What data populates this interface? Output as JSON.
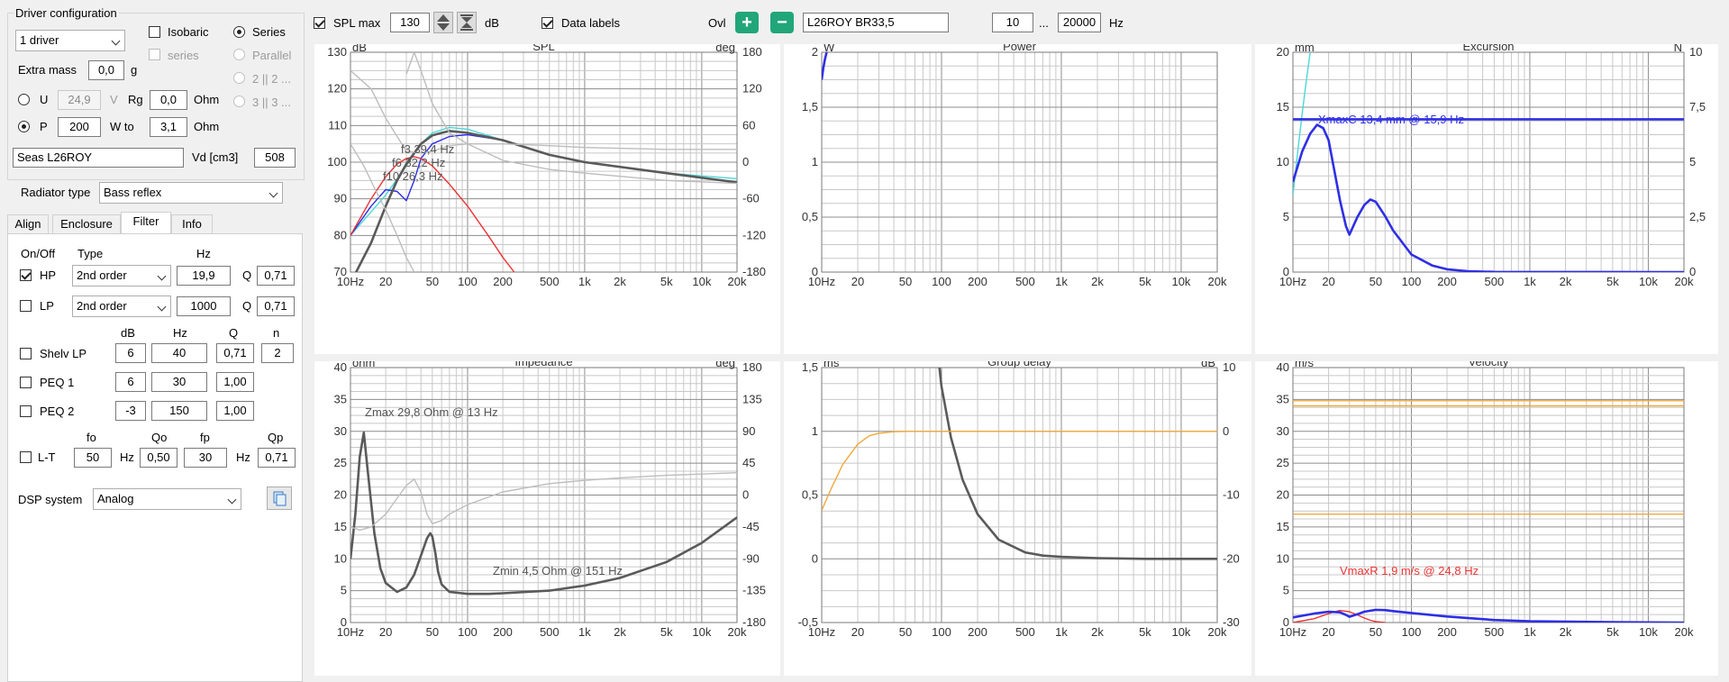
{
  "left": {
    "driver_group": "Driver configuration",
    "driver_count": "1 driver",
    "isobaric": "Isobaric",
    "series_cb": "series",
    "series_rb": "Series",
    "parallel_rb": "Parallel",
    "p2_rb": "2 || 2 ...",
    "p3_rb": "3 || 3 ...",
    "extra_mass_label": "Extra mass",
    "extra_mass_value": "0,0",
    "extra_mass_unit": "g",
    "u_label": "U",
    "u_value": "24,9",
    "u_unit": "V",
    "rg_label": "Rg",
    "rg_value": "0,0",
    "rg_unit": "Ohm",
    "p_label": "P",
    "p_value": "200",
    "wto_label": "W to",
    "wto_value": "3,1",
    "wto_unit": "Ohm",
    "driver_name": "Seas L26ROY",
    "vd_label": "Vd [cm3]",
    "vd_value": "508",
    "radiator_label": "Radiator type",
    "radiator_value": "Bass reflex",
    "tabs": [
      "Align",
      "Enclosure",
      "Filter",
      "Info"
    ],
    "filter": {
      "col_onoff": "On/Off",
      "col_type": "Type",
      "col_hz": "Hz",
      "hp_label": "HP",
      "hp_type": "2nd order",
      "hp_hz": "19,9",
      "hp_q_label": "Q",
      "hp_q": "0,71",
      "lp_label": "LP",
      "lp_type": "2nd order",
      "lp_hz": "1000",
      "lp_q_label": "Q",
      "lp_q": "0,71",
      "h_db": "dB",
      "h_hz": "Hz",
      "h_q": "Q",
      "h_n": "n",
      "shelv_label": "Shelv LP",
      "shelv_db": "6",
      "shelv_hz": "40",
      "shelv_q": "0,71",
      "shelv_n": "2",
      "peq1_label": "PEQ 1",
      "peq1_db": "6",
      "peq1_hz": "30",
      "peq1_q": "1,00",
      "peq2_label": "PEQ 2",
      "peq2_db": "-3",
      "peq2_hz": "150",
      "peq2_q": "1,00",
      "h_fo": "fo",
      "h_qo": "Qo",
      "h_fp": "fp",
      "h_qp": "Qp",
      "lt_label": "L-T",
      "lt_fo": "50",
      "lt_hz1": "Hz",
      "lt_qo": "0,50",
      "lt_fp": "30",
      "lt_hz2": "Hz",
      "lt_qp": "0,71",
      "dsp_label": "DSP system",
      "dsp_value": "Analog"
    }
  },
  "toolbar": {
    "splmax_label": "SPL max",
    "splmax_value": "130",
    "splmax_unit": "dB",
    "datalabels_label": "Data labels",
    "ovl_label": "Ovl",
    "plus": "+",
    "minus": "−",
    "overlay_name": "L26ROY BR33,5",
    "f_from": "10",
    "dots": "...",
    "f_to": "20000",
    "f_unit": "Hz"
  },
  "colors": {
    "grid": "#c8c8c8",
    "grid_major": "#8c8c8c",
    "dark": "#5a5a5a",
    "light": "#bdbdbd",
    "blue": "#2e2ee6",
    "cyan": "#4ad8d8",
    "red": "#ee3333",
    "orange": "#f0a83c"
  },
  "chart_data": [
    {
      "name": "spl",
      "type": "line",
      "title": "SPL",
      "ylabel": "dB",
      "y2label": "deg",
      "ylim": [
        70,
        130
      ],
      "yticks": [
        "130",
        "120",
        "110",
        "100",
        "90",
        "80",
        "70"
      ],
      "y2ticks": [
        "180",
        "120",
        "60",
        "0",
        "-60",
        "-120",
        "-180"
      ],
      "xticks": [
        "10Hz",
        "20",
        "50",
        "100",
        "200",
        "500",
        "1k",
        "2k",
        "5k",
        "10k",
        "20k"
      ],
      "annotations": [
        "f3 39,4 Hz",
        "f6 32,2 Hz",
        "f10 26,3 Hz"
      ],
      "series": [
        {
          "color": "cyan",
          "x": [
            10,
            20,
            30,
            40,
            50,
            70,
            100,
            200,
            500,
            1000,
            5000,
            20000
          ],
          "y": [
            80,
            91,
            99,
            105,
            108,
            109.5,
            109,
            106,
            102,
            100,
            97,
            95.5
          ]
        },
        {
          "color": "blue",
          "x": [
            10,
            15,
            20,
            25,
            30,
            35,
            40,
            50,
            70,
            100,
            200,
            500,
            1000,
            5000,
            20000
          ],
          "y": [
            80,
            88,
            92.5,
            92,
            89.5,
            95,
            101,
            105,
            107,
            107.5,
            106,
            102,
            100,
            97,
            94.5
          ]
        },
        {
          "color": "red",
          "x": [
            10,
            15,
            20,
            25,
            30,
            35,
            40,
            50,
            70,
            100,
            150,
            200,
            250
          ],
          "y": [
            80,
            90,
            96,
            99.5,
            101,
            101.5,
            101,
            99,
            94,
            88,
            80,
            74,
            70
          ]
        },
        {
          "color": "dark",
          "x": [
            10,
            15,
            20,
            25,
            30,
            40,
            50,
            60,
            70,
            100,
            200,
            500,
            1000,
            5000,
            20000
          ],
          "y": [
            67,
            78,
            88,
            95,
            99.5,
            105,
            107.3,
            108,
            108.5,
            108,
            106,
            102,
            100,
            97,
            94.5
          ]
        },
        {
          "color": "light",
          "x": [
            10,
            15,
            20,
            30,
            40,
            50,
            70,
            100,
            200,
            500,
            1000,
            5000,
            20000
          ],
          "y": [
            125,
            120,
            112,
            103,
            102.5,
            103,
            104.5,
            105,
            105,
            104.5,
            104,
            103.5,
            103.5
          ]
        },
        {
          "color": "light",
          "x": [
            10,
            13,
            16,
            20,
            25,
            30,
            35
          ],
          "y": [
            105,
            99,
            93,
            87,
            80,
            74,
            70
          ]
        },
        {
          "color": "light",
          "x": [
            30,
            35,
            40,
            50,
            70,
            100,
            200,
            500,
            1000,
            5000,
            20000
          ],
          "y": [
            124,
            130,
            125,
            116,
            108,
            105,
            100.5,
            98,
            97,
            95,
            94.2
          ]
        }
      ]
    },
    {
      "name": "power",
      "type": "line",
      "title": "Power",
      "ylabel": "W",
      "ylim": [
        0,
        2
      ],
      "yticks": [
        "2",
        "1,5",
        "1",
        "0,5",
        "0"
      ],
      "xticks": [
        "10Hz",
        "20",
        "50",
        "100",
        "200",
        "500",
        "1k",
        "2k",
        "5k",
        "10k",
        "20k"
      ],
      "series": [
        {
          "color": "blue",
          "x": [
            10,
            10.3,
            10.6,
            11
          ],
          "y": [
            1.75,
            1.85,
            1.93,
            2.0
          ]
        }
      ]
    },
    {
      "name": "excursion",
      "type": "line",
      "title": "Excursion",
      "ylabel": "mm",
      "y2label": "N",
      "ylim": [
        0,
        20
      ],
      "yticks": [
        "20",
        "15",
        "10",
        "5",
        "0"
      ],
      "y2ticks": [
        "10",
        "7,5",
        "5",
        "2,5",
        "0"
      ],
      "xticks": [
        "10Hz",
        "20",
        "50",
        "100",
        "200",
        "500",
        "1k",
        "2k",
        "5k",
        "10k",
        "20k"
      ],
      "annotations": [
        "XmaxC 13,4 mm  @ 15,9 Hz"
      ],
      "series": [
        {
          "color": "cyan",
          "x": [
            10,
            11,
            12,
            13,
            14
          ],
          "y": [
            7,
            11,
            14.5,
            17.5,
            20
          ]
        },
        {
          "color": "blue",
          "x": [
            10,
            12,
            14,
            16,
            18,
            20,
            25,
            28,
            30,
            35,
            40,
            45,
            50,
            60,
            70,
            100,
            150,
            200,
            300,
            500,
            20000
          ],
          "y": [
            8.2,
            11,
            12.6,
            13.4,
            13.1,
            12,
            6.5,
            4.2,
            3.4,
            5,
            6.1,
            6.6,
            6.4,
            5.1,
            3.8,
            1.6,
            0.6,
            0.25,
            0.08,
            0.02,
            0
          ]
        },
        {
          "color": "blue",
          "x": [
            10,
            20000
          ],
          "y": [
            13.9,
            13.9
          ]
        }
      ]
    },
    {
      "name": "impedance",
      "type": "line",
      "title": "Impedance",
      "ylabel": "ohm",
      "y2label": "deg",
      "ylim": [
        0,
        40
      ],
      "yticks": [
        "40",
        "35",
        "30",
        "25",
        "20",
        "15",
        "10",
        "5",
        "0"
      ],
      "y2ticks": [
        "180",
        "135",
        "90",
        "45",
        "0",
        "-45",
        "-90",
        "-135",
        "-180"
      ],
      "xticks": [
        "10Hz",
        "20",
        "50",
        "100",
        "200",
        "500",
        "1k",
        "2k",
        "5k",
        "10k",
        "20k"
      ],
      "annotations": [
        "Zmax 29,8 Ohm @ 13 Hz",
        "Zmin 4,5 Ohm @ 151 Hz"
      ],
      "series": [
        {
          "color": "dark",
          "x": [
            10,
            11,
            12,
            13,
            14,
            16,
            18,
            20,
            25,
            30,
            35,
            40,
            45,
            48,
            50,
            53,
            56,
            60,
            70,
            100,
            151,
            200,
            500,
            1000,
            2000,
            5000,
            10000,
            20000
          ],
          "y": [
            10,
            17,
            26,
            29.8,
            24,
            14,
            8.5,
            6.2,
            4.8,
            5.5,
            7.5,
            10.5,
            13.2,
            14,
            13.5,
            11,
            8,
            6,
            4.8,
            4.5,
            4.5,
            4.6,
            5,
            5.8,
            7,
            9.5,
            12.5,
            16.5
          ]
        },
        {
          "color": "light",
          "x": [
            10,
            12,
            15,
            20,
            25,
            30,
            35,
            40,
            45,
            50,
            60,
            70,
            100,
            200,
            500,
            1000,
            2000,
            5000,
            20000
          ],
          "y": [
            15,
            14.5,
            15,
            17,
            19.5,
            21.5,
            22.5,
            20.5,
            17,
            15.5,
            16,
            17,
            18.5,
            20.5,
            21.8,
            22.3,
            22.7,
            23.1,
            23.5
          ]
        }
      ]
    },
    {
      "name": "group_delay",
      "type": "line",
      "title": "Group delay",
      "ylabel": "ms",
      "y2label": "dB",
      "ylim": [
        -0.5,
        1.5
      ],
      "yticks": [
        "1,5",
        "1",
        "0,5",
        "0",
        "-0,5"
      ],
      "y2ticks": [
        "10",
        "0",
        "-10",
        "-20",
        "-30"
      ],
      "xticks": [
        "10Hz",
        "20",
        "50",
        "100",
        "200",
        "500",
        "1k",
        "2k",
        "5k",
        "10k",
        "20k"
      ],
      "series": [
        {
          "color": "dark",
          "x": [
            96,
            100,
            120,
            150,
            200,
            300,
            500,
            700,
            1000,
            2000,
            5000,
            20000
          ],
          "y": [
            1.5,
            1.35,
            0.95,
            0.62,
            0.35,
            0.15,
            0.05,
            0.025,
            0.015,
            0.005,
            0,
            0
          ]
        },
        {
          "color": "orange",
          "x": [
            10,
            12,
            15,
            20,
            25,
            30,
            40,
            50,
            100,
            20000
          ],
          "y": [
            0.38,
            0.55,
            0.74,
            0.9,
            0.965,
            0.985,
            0.997,
            1,
            1,
            1
          ]
        }
      ]
    },
    {
      "name": "velocity",
      "type": "line",
      "title": "Velocity",
      "ylabel": "m/s",
      "ylim": [
        0,
        40
      ],
      "yticks": [
        "40",
        "35",
        "30",
        "25",
        "20",
        "15",
        "10",
        "5",
        "0"
      ],
      "xticks": [
        "10Hz",
        "20",
        "50",
        "100",
        "200",
        "500",
        "1k",
        "2k",
        "5k",
        "10k",
        "20k"
      ],
      "annotations": [
        "VmaxR 1,9 m/s @ 24,8 Hz"
      ],
      "series": [
        {
          "color": "orange",
          "x": [
            10,
            20000
          ],
          "y": [
            34,
            34
          ]
        },
        {
          "color": "orange",
          "x": [
            10,
            20000
          ],
          "y": [
            34.8,
            34.8
          ]
        },
        {
          "color": "orange",
          "x": [
            10,
            20000
          ],
          "y": [
            17,
            17
          ]
        },
        {
          "color": "red",
          "x": [
            10,
            15,
            20,
            24.8,
            30,
            35,
            40,
            45,
            50,
            60
          ],
          "y": [
            0,
            0.6,
            1.4,
            1.9,
            1.7,
            1.2,
            0.7,
            0.35,
            0.15,
            0
          ]
        },
        {
          "color": "blue",
          "x": [
            10,
            15,
            20,
            25,
            28,
            30,
            35,
            40,
            50,
            60,
            70,
            100,
            200,
            500,
            1000,
            5000,
            20000
          ],
          "y": [
            0.8,
            1.4,
            1.7,
            1.6,
            1.2,
            0.9,
            1.3,
            1.7,
            2,
            1.95,
            1.8,
            1.5,
            0.95,
            0.4,
            0.2,
            0.05,
            0
          ]
        }
      ]
    }
  ]
}
